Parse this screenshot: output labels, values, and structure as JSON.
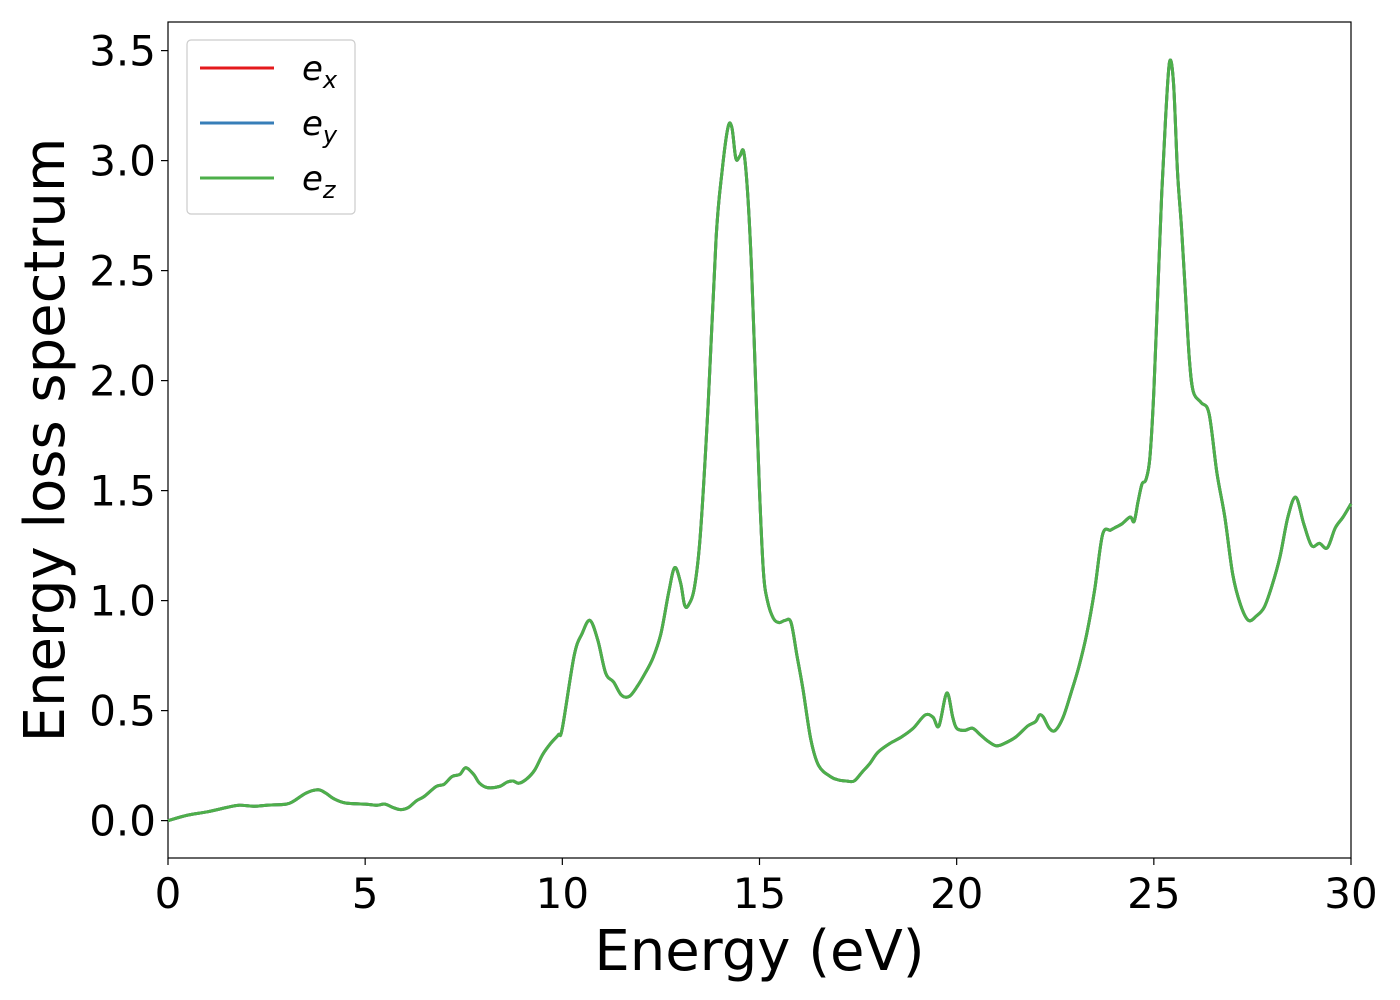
{
  "chart_data": {
    "type": "line",
    "title": "",
    "xlabel": "Energy (eV)",
    "ylabel": "Energy loss spectrum",
    "xlim": [
      0,
      30
    ],
    "ylim": [
      -0.17,
      3.63
    ],
    "xticks": [
      0,
      5,
      10,
      15,
      20,
      25,
      30
    ],
    "xtick_labels": [
      "0",
      "5",
      "10",
      "15",
      "20",
      "25",
      "30"
    ],
    "yticks": [
      0.0,
      0.5,
      1.0,
      1.5,
      2.0,
      2.5,
      3.0,
      3.5
    ],
    "ytick_labels": [
      "0.0",
      "0.5",
      "1.0",
      "1.5",
      "2.0",
      "2.5",
      "3.0",
      "3.5"
    ],
    "grid": false,
    "legend_position": "top-left",
    "x": [
      0.0,
      0.5,
      1.0,
      1.5,
      1.8,
      2.2,
      2.5,
      3.0,
      3.2,
      3.5,
      3.8,
      4.0,
      4.2,
      4.5,
      5.0,
      5.3,
      5.5,
      5.7,
      5.9,
      6.1,
      6.3,
      6.5,
      6.8,
      7.0,
      7.2,
      7.4,
      7.55,
      7.75,
      7.9,
      8.1,
      8.4,
      8.6,
      8.75,
      8.9,
      9.1,
      9.3,
      9.5,
      9.7,
      9.9,
      10.0,
      10.3,
      10.5,
      10.7,
      10.9,
      11.1,
      11.3,
      11.5,
      11.7,
      11.9,
      12.1,
      12.3,
      12.5,
      12.7,
      12.85,
      13.0,
      13.1,
      13.2,
      13.35,
      13.5,
      13.7,
      13.9,
      14.05,
      14.2,
      14.3,
      14.4,
      14.5,
      14.6,
      14.7,
      14.8,
      14.9,
      15.0,
      15.1,
      15.2,
      15.35,
      15.5,
      15.65,
      15.8,
      15.95,
      16.1,
      16.3,
      16.5,
      16.8,
      17.0,
      17.2,
      17.4,
      17.6,
      17.8,
      18.0,
      18.3,
      18.6,
      18.9,
      19.2,
      19.4,
      19.55,
      19.75,
      19.9,
      20.0,
      20.2,
      20.4,
      20.6,
      20.8,
      21.0,
      21.2,
      21.5,
      21.8,
      22.0,
      22.1,
      22.2,
      22.35,
      22.5,
      22.7,
      22.9,
      23.1,
      23.3,
      23.5,
      23.7,
      23.9,
      24.0,
      24.2,
      24.4,
      24.5,
      24.6,
      24.7,
      24.8,
      24.9,
      25.0,
      25.1,
      25.2,
      25.3,
      25.4,
      25.5,
      25.6,
      25.7,
      25.8,
      25.9,
      26.0,
      26.2,
      26.4,
      26.6,
      26.8,
      27.0,
      27.2,
      27.4,
      27.6,
      27.8,
      28.0,
      28.2,
      28.4,
      28.6,
      28.8,
      29.0,
      29.2,
      29.4,
      29.6,
      29.8,
      30.0
    ],
    "series": [
      {
        "name": "e_x",
        "color": "#e41a1c",
        "values": [
          0.0,
          0.025,
          0.04,
          0.06,
          0.07,
          0.065,
          0.07,
          0.075,
          0.09,
          0.125,
          0.14,
          0.125,
          0.1,
          0.08,
          0.075,
          0.07,
          0.075,
          0.06,
          0.05,
          0.06,
          0.09,
          0.11,
          0.155,
          0.165,
          0.2,
          0.21,
          0.24,
          0.21,
          0.17,
          0.15,
          0.155,
          0.175,
          0.18,
          0.17,
          0.19,
          0.23,
          0.3,
          0.35,
          0.39,
          0.42,
          0.75,
          0.85,
          0.91,
          0.82,
          0.67,
          0.63,
          0.57,
          0.565,
          0.61,
          0.67,
          0.74,
          0.85,
          1.04,
          1.15,
          1.08,
          0.98,
          0.98,
          1.06,
          1.3,
          1.9,
          2.65,
          2.95,
          3.15,
          3.15,
          3.01,
          3.02,
          3.04,
          2.85,
          2.5,
          2.0,
          1.5,
          1.13,
          1.0,
          0.92,
          0.9,
          0.91,
          0.9,
          0.75,
          0.6,
          0.37,
          0.25,
          0.2,
          0.185,
          0.18,
          0.18,
          0.22,
          0.26,
          0.31,
          0.35,
          0.38,
          0.42,
          0.48,
          0.47,
          0.43,
          0.58,
          0.47,
          0.42,
          0.41,
          0.42,
          0.39,
          0.36,
          0.34,
          0.35,
          0.38,
          0.43,
          0.45,
          0.48,
          0.47,
          0.42,
          0.41,
          0.47,
          0.58,
          0.7,
          0.85,
          1.05,
          1.3,
          1.32,
          1.33,
          1.35,
          1.38,
          1.36,
          1.45,
          1.53,
          1.55,
          1.65,
          1.95,
          2.4,
          2.85,
          3.2,
          3.45,
          3.35,
          2.95,
          2.7,
          2.4,
          2.1,
          1.95,
          1.9,
          1.85,
          1.58,
          1.38,
          1.12,
          0.98,
          0.91,
          0.93,
          0.97,
          1.07,
          1.2,
          1.38,
          1.47,
          1.35,
          1.25,
          1.26,
          1.24,
          1.33,
          1.38,
          1.44
        ]
      },
      {
        "name": "e_y",
        "color": "#377eb8",
        "values": [
          0.0,
          0.025,
          0.04,
          0.06,
          0.07,
          0.065,
          0.07,
          0.075,
          0.09,
          0.125,
          0.14,
          0.125,
          0.1,
          0.08,
          0.075,
          0.07,
          0.075,
          0.06,
          0.05,
          0.06,
          0.09,
          0.11,
          0.155,
          0.165,
          0.2,
          0.21,
          0.24,
          0.21,
          0.17,
          0.15,
          0.155,
          0.175,
          0.18,
          0.17,
          0.19,
          0.23,
          0.3,
          0.35,
          0.39,
          0.42,
          0.75,
          0.85,
          0.91,
          0.82,
          0.67,
          0.63,
          0.57,
          0.565,
          0.61,
          0.67,
          0.74,
          0.85,
          1.04,
          1.15,
          1.08,
          0.98,
          0.98,
          1.06,
          1.3,
          1.9,
          2.65,
          2.95,
          3.15,
          3.15,
          3.01,
          3.02,
          3.04,
          2.85,
          2.5,
          2.0,
          1.5,
          1.13,
          1.0,
          0.92,
          0.9,
          0.91,
          0.9,
          0.75,
          0.6,
          0.37,
          0.25,
          0.2,
          0.185,
          0.18,
          0.18,
          0.22,
          0.26,
          0.31,
          0.35,
          0.38,
          0.42,
          0.48,
          0.47,
          0.43,
          0.58,
          0.47,
          0.42,
          0.41,
          0.42,
          0.39,
          0.36,
          0.34,
          0.35,
          0.38,
          0.43,
          0.45,
          0.48,
          0.47,
          0.42,
          0.41,
          0.47,
          0.58,
          0.7,
          0.85,
          1.05,
          1.3,
          1.32,
          1.33,
          1.35,
          1.38,
          1.36,
          1.45,
          1.53,
          1.55,
          1.65,
          1.95,
          2.4,
          2.85,
          3.2,
          3.45,
          3.35,
          2.95,
          2.7,
          2.4,
          2.1,
          1.95,
          1.9,
          1.85,
          1.58,
          1.38,
          1.12,
          0.98,
          0.91,
          0.93,
          0.97,
          1.07,
          1.2,
          1.38,
          1.47,
          1.35,
          1.25,
          1.26,
          1.24,
          1.33,
          1.38,
          1.44
        ]
      },
      {
        "name": "e_z",
        "color": "#4daf4a",
        "values": [
          0.0,
          0.025,
          0.04,
          0.06,
          0.07,
          0.065,
          0.07,
          0.075,
          0.09,
          0.125,
          0.14,
          0.125,
          0.1,
          0.08,
          0.075,
          0.07,
          0.075,
          0.06,
          0.05,
          0.06,
          0.09,
          0.11,
          0.155,
          0.165,
          0.2,
          0.21,
          0.24,
          0.21,
          0.17,
          0.15,
          0.155,
          0.175,
          0.18,
          0.17,
          0.19,
          0.23,
          0.3,
          0.35,
          0.39,
          0.42,
          0.75,
          0.85,
          0.91,
          0.82,
          0.67,
          0.63,
          0.57,
          0.565,
          0.61,
          0.67,
          0.74,
          0.85,
          1.04,
          1.15,
          1.08,
          0.98,
          0.98,
          1.06,
          1.3,
          1.9,
          2.65,
          2.95,
          3.15,
          3.15,
          3.01,
          3.02,
          3.04,
          2.85,
          2.5,
          2.0,
          1.5,
          1.13,
          1.0,
          0.92,
          0.9,
          0.91,
          0.9,
          0.75,
          0.6,
          0.37,
          0.25,
          0.2,
          0.185,
          0.18,
          0.18,
          0.22,
          0.26,
          0.31,
          0.35,
          0.38,
          0.42,
          0.48,
          0.47,
          0.43,
          0.58,
          0.47,
          0.42,
          0.41,
          0.42,
          0.39,
          0.36,
          0.34,
          0.35,
          0.38,
          0.43,
          0.45,
          0.48,
          0.47,
          0.42,
          0.41,
          0.47,
          0.58,
          0.7,
          0.85,
          1.05,
          1.3,
          1.32,
          1.33,
          1.35,
          1.38,
          1.36,
          1.45,
          1.53,
          1.55,
          1.65,
          1.95,
          2.4,
          2.85,
          3.2,
          3.45,
          3.35,
          2.95,
          2.7,
          2.4,
          2.1,
          1.95,
          1.9,
          1.85,
          1.58,
          1.38,
          1.12,
          0.98,
          0.91,
          0.93,
          0.97,
          1.07,
          1.2,
          1.38,
          1.47,
          1.35,
          1.25,
          1.26,
          1.24,
          1.33,
          1.38,
          1.44
        ]
      }
    ],
    "legend": [
      {
        "base": "e",
        "sub": "x",
        "color": "#e41a1c"
      },
      {
        "base": "e",
        "sub": "y",
        "color": "#377eb8"
      },
      {
        "base": "e",
        "sub": "z",
        "color": "#4daf4a"
      }
    ]
  }
}
